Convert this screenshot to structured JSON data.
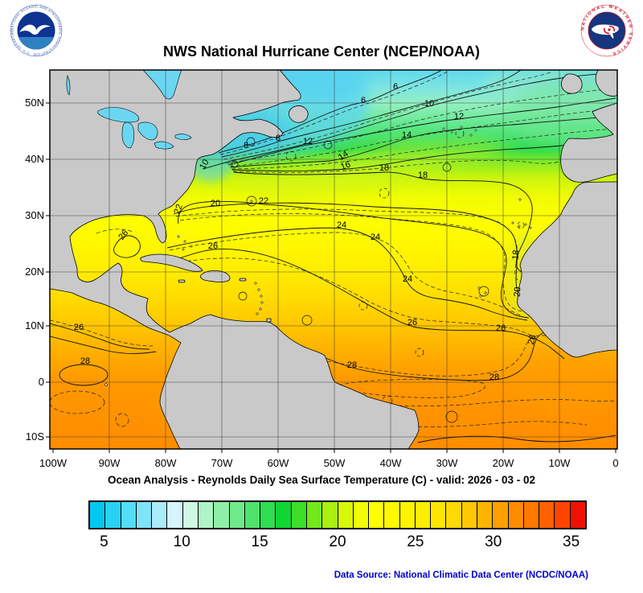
{
  "header": {
    "title": "NWS National Hurricane Center (NCEP/NOAA)"
  },
  "logos": {
    "noaa_ring_text": "NATIONAL OCEANIC AND ATMOSPHERIC ADMINISTRATION · U.S. DEPARTMENT OF COMMERCE",
    "nws_ring_text": "NATIONAL WEATHER SERVICE"
  },
  "subtitle": "Ocean Analysis - Reynolds Daily Sea Surface Temperature (C) - valid: 2026 - 03 - 02",
  "footer": {
    "data_source": "Data Source: National Climatic Data Center (NCDC/NOAA)"
  },
  "map": {
    "lat_labels": [
      "50N",
      "40N",
      "30N",
      "20N",
      "10N",
      "0",
      "10S"
    ],
    "lon_labels": [
      "100W",
      "90W",
      "80W",
      "70W",
      "60W",
      "50W",
      "40W",
      "30W",
      "20W",
      "10W",
      "0"
    ],
    "contour_labels": [
      "6",
      "6",
      "10",
      "12",
      "8",
      "12",
      "6",
      "14",
      "14",
      "10",
      "16",
      "18",
      "18",
      "20",
      "22",
      "22",
      "24",
      "24",
      "26",
      "26",
      "24",
      "18",
      "20",
      "26",
      "26",
      "28",
      "28",
      "28",
      "26",
      "28"
    ]
  },
  "colorbar": {
    "ticks": [
      "5",
      "10",
      "15",
      "20",
      "25",
      "30",
      "35"
    ],
    "min_value": 4,
    "max_value": 36,
    "colors": [
      "#00C8F0",
      "#28D2F4",
      "#55DCF6",
      "#7FE4F8",
      "#AAECFA",
      "#D5F4FB",
      "#CFF8E2",
      "#AFF4C5",
      "#8FEFA8",
      "#6FE98B",
      "#4FE36E",
      "#2FDD51",
      "#0FD634",
      "#3CDF28",
      "#72E81C",
      "#A8F110",
      "#D9F808",
      "#F2FC04",
      "#FFFF00",
      "#FFFA00",
      "#FFF400",
      "#FFEE00",
      "#FFE600",
      "#FFD900",
      "#FFC800",
      "#FFB400",
      "#FFA000",
      "#FF8C00",
      "#FF7800",
      "#FF6000",
      "#FF4400",
      "#EE1100"
    ]
  },
  "chart_data": {
    "type": "heatmap",
    "title": "NWS National Hurricane Center (NCEP/NOAA)",
    "subtitle": "Ocean Analysis - Reynolds Daily Sea Surface Temperature (C) - valid: 2026 - 03 - 02",
    "variable": "Reynolds Daily Sea Surface Temperature",
    "units": "C",
    "valid_date": "2026 - 03 - 02",
    "lon_range": [
      "100W",
      "0"
    ],
    "lat_range": [
      "10S",
      "55N"
    ],
    "lon_ticks": [
      "100W",
      "90W",
      "80W",
      "70W",
      "60W",
      "50W",
      "40W",
      "30W",
      "20W",
      "10W",
      "0"
    ],
    "lat_ticks": [
      "50N",
      "40N",
      "30N",
      "20N",
      "10N",
      "0",
      "10S"
    ],
    "colorbar_ticks": [
      5,
      10,
      15,
      20,
      25,
      30,
      35
    ],
    "colorbar_range": [
      4,
      36
    ],
    "labeled_isotherms_c": [
      6,
      8,
      10,
      12,
      14,
      16,
      18,
      20,
      22,
      24,
      26,
      28
    ],
    "contour_interval_c": 1,
    "data_source": "Data Source: National Climatic Data Center (NCDC/NOAA)",
    "pattern": "SST ~28C along equatorial Atlantic; 24-26C across subtropics; tight Gulf Stream front 8-18C near 40N off the US east coast; 6-12C north of 45N; cool upwelling tongue 18-20C along NW African coast"
  }
}
